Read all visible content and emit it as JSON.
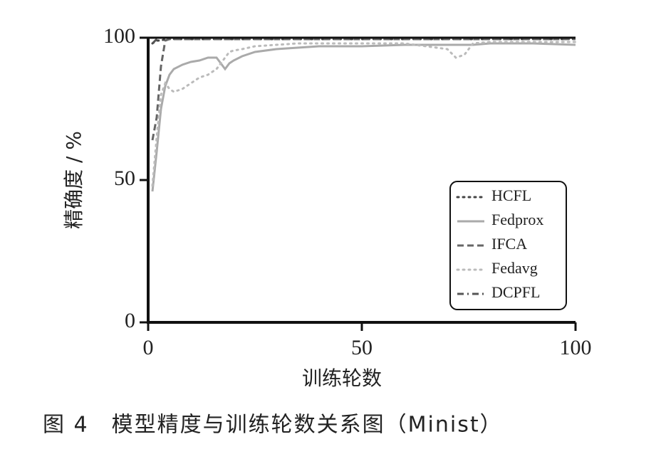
{
  "chart_data": {
    "type": "line",
    "xlabel": "训练轮数",
    "ylabel": "精确度 / %",
    "caption": "图 4　模型精度与训练轮数关系图（Minist）",
    "x": [
      1,
      2,
      3,
      4,
      5,
      6,
      8,
      10,
      12,
      14,
      16,
      18,
      19,
      20,
      22,
      25,
      30,
      35,
      40,
      50,
      60,
      70,
      72,
      74,
      76,
      80,
      90,
      100
    ],
    "series": [
      {
        "name": "HCFL",
        "color": "#444444",
        "style": "dotted",
        "values": [
          98,
          99,
          99,
          99.5,
          99.5,
          99.5,
          99.5,
          99.5,
          99.5,
          99.5,
          99.5,
          99.5,
          99.5,
          99.5,
          99.5,
          99.5,
          99.5,
          99.5,
          99.5,
          99.5,
          99.5,
          99.5,
          99.5,
          99.5,
          99.5,
          99.5,
          99.5,
          99.5
        ]
      },
      {
        "name": "Fedprox",
        "color": "#aaaaaa",
        "style": "solid",
        "values": [
          46,
          60,
          75,
          83,
          87,
          89,
          90.5,
          91.5,
          92,
          93,
          93,
          89,
          91,
          92,
          93.5,
          95,
          96,
          96.5,
          97,
          97,
          97.5,
          97.5,
          97.5,
          97.5,
          97.5,
          98,
          98,
          97.5
        ]
      },
      {
        "name": "IFCA",
        "color": "#666666",
        "style": "dashed",
        "values": [
          64,
          72,
          90,
          99,
          99.5,
          99.5,
          99.5,
          99.5,
          99.5,
          99.5,
          99.5,
          99.5,
          99.5,
          99.5,
          99.5,
          99.5,
          99.5,
          99.5,
          99.5,
          99.5,
          99.5,
          99.5,
          99.5,
          99.5,
          99.5,
          99.5,
          99.5,
          99.5
        ]
      },
      {
        "name": "Fedavg",
        "color": "#bbbbbb",
        "style": "dotted",
        "values": [
          48,
          65,
          80,
          84,
          82,
          81,
          82,
          84,
          86,
          87,
          89,
          93,
          95,
          95.5,
          96,
          97,
          97.5,
          98,
          98,
          98,
          98,
          96,
          93,
          94,
          98,
          98.5,
          98.5,
          98.5
        ]
      },
      {
        "name": "DCPFL",
        "color": "#555555",
        "style": "dashdot",
        "values": [
          98,
          99.5,
          100,
          100,
          100,
          100,
          100,
          100,
          100,
          100,
          100,
          100,
          100,
          100,
          100,
          100,
          100,
          100,
          100,
          100,
          100,
          100,
          100,
          100,
          100,
          100,
          100,
          100
        ]
      }
    ],
    "xlim": [
      0,
      100
    ],
    "xticks": [
      0,
      50,
      100
    ],
    "ylim": [
      0,
      100
    ],
    "yticks": [
      0,
      50,
      100
    ],
    "legend": "lower right"
  }
}
